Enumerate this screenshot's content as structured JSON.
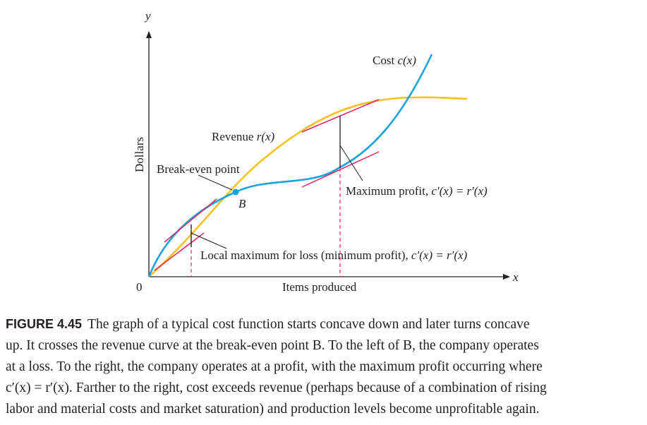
{
  "axes": {
    "y_label": "y",
    "x_label": "x",
    "y_title": "Dollars",
    "x_title": "Items produced",
    "origin_label": "0"
  },
  "labels": {
    "cost_word": "Cost ",
    "cost_fn": "c(x)",
    "revenue_word": "Revenue ",
    "revenue_fn": "r(x)",
    "break_even": "Break-even point",
    "point_b": "B",
    "max_profit_text": "Maximum profit, ",
    "max_profit_eq": "c′(x) = r′(x)",
    "local_max_text": "Local maximum for loss (minimum profit), ",
    "local_max_eq": "c′(x) = r′(x)"
  },
  "caption": {
    "figure_number": "FIGURE 4.45",
    "lines": [
      "The graph of a typical cost function starts concave down and later turns concave",
      "up. It crosses the revenue curve at the break-even point B. To the left of B, the company operates",
      "at a loss. To the right, the company operates at a profit, with the maximum profit occurring where",
      "c′(x) = r′(x). Farther to the right, cost exceeds revenue (perhaps because of a combination of rising",
      "labor and material costs and market saturation) and production levels become unprofitable again."
    ]
  },
  "colors": {
    "cost_curve": "#1aa3dc",
    "revenue_curve": "#f7c21a",
    "tangent": "#e0245e",
    "axis": "#231f20",
    "dashed": "#e0245e"
  }
}
